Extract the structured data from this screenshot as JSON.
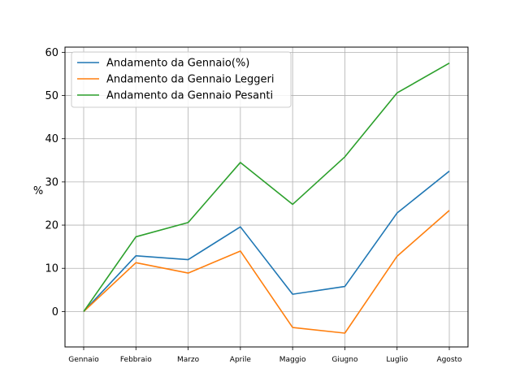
{
  "chart_data": {
    "type": "line",
    "categories": [
      "Gennaio",
      "Febbraio",
      "Marzo",
      "Aprile",
      "Maggio",
      "Giugno",
      "Luglio",
      "Agosto"
    ],
    "series": [
      {
        "name": "Andamento da Gennaio(%)",
        "color": "#1f77b4",
        "values": [
          0,
          12.9,
          12.0,
          19.6,
          4.0,
          5.8,
          22.8,
          32.5
        ]
      },
      {
        "name": "Andamento da Gennaio Leggeri",
        "color": "#ff7f0e",
        "values": [
          0,
          11.3,
          8.9,
          14.0,
          -3.7,
          -5.0,
          12.8,
          23.4
        ]
      },
      {
        "name": "Andamento da Gennaio Pesanti",
        "color": "#2ca02c",
        "values": [
          0,
          17.3,
          20.6,
          34.5,
          24.8,
          35.8,
          50.6,
          57.5
        ]
      }
    ],
    "ylabel": "%",
    "ylim": [
      -8.2,
      61.2
    ],
    "yticks": [
      0,
      10,
      20,
      30,
      40,
      50,
      60
    ],
    "grid": true,
    "legend_position": "upper-left"
  }
}
